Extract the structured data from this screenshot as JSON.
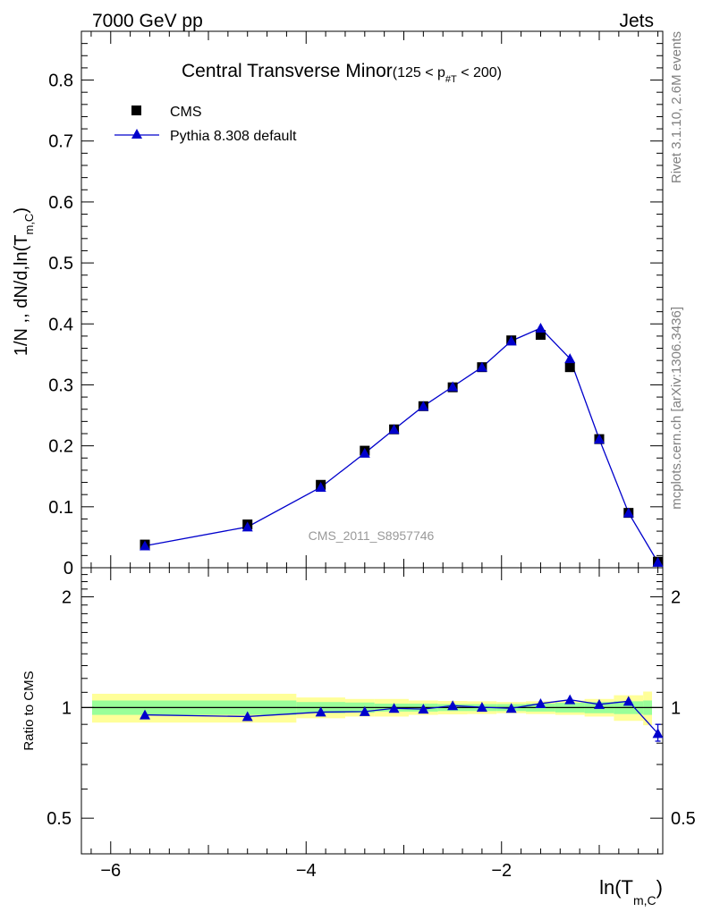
{
  "header": {
    "left": "7000 GeV pp",
    "right": "Jets"
  },
  "side_labels": {
    "rivet": "Rivet 3.1.10,  2.6M events",
    "mcplots": "mcplots.cern.ch [arXiv:1306.3436]"
  },
  "colors": {
    "data": "#000000",
    "mc": "#0000cc",
    "band_inner": "#99ff99",
    "band_outer": "#ffff99",
    "axis": "#000000",
    "watermark": "#999999"
  },
  "chart_data": [
    {
      "type": "scatter",
      "panel": "main",
      "title_main": "Central Transverse Minor",
      "title_sub": "(125 < p",
      "title_sub_index": "#T",
      "title_sub_tail": "  < 200)",
      "ylabel": "1/N ,, dN/d,ln(T",
      "ylabel_sub": "m,C",
      "ylabel_tail": ")",
      "watermark": "CMS_2011_S8957746",
      "xlim": [
        -6.3,
        -0.35
      ],
      "ylim": [
        0,
        0.88
      ],
      "yticks": [
        0,
        0.1,
        0.2,
        0.3,
        0.4,
        0.5,
        0.6,
        0.7,
        0.8
      ],
      "ytick_labels": [
        "0",
        "0.1",
        "0.2",
        "0.3",
        "0.4",
        "0.5",
        "0.6",
        "0.7",
        "0.8"
      ],
      "x": [
        -5.65,
        -4.6,
        -3.85,
        -3.4,
        -3.1,
        -2.8,
        -2.5,
        -2.2,
        -1.9,
        -1.6,
        -1.3,
        -1.0,
        -0.7,
        -0.4
      ],
      "series": [
        {
          "name": "CMS",
          "marker": "square",
          "values": [
            0.038,
            0.071,
            0.136,
            0.192,
            0.227,
            0.265,
            0.296,
            0.329,
            0.373,
            0.382,
            0.329,
            0.211,
            0.09,
            0.01
          ]
        },
        {
          "name": "Pythia 8.308 default",
          "marker": "triangle",
          "line": true,
          "values": [
            0.036,
            0.067,
            0.132,
            0.188,
            0.227,
            0.265,
            0.297,
            0.329,
            0.372,
            0.393,
            0.343,
            0.211,
            0.09,
            0.009
          ]
        }
      ]
    },
    {
      "type": "scatter",
      "panel": "ratio",
      "ylabel": "Ratio to CMS",
      "xlabel": "ln(T",
      "xlabel_sub": "m,C",
      "xlabel_tail": ")",
      "xticks": [
        -6,
        -4,
        -2
      ],
      "xtick_labels": [
        "−6",
        "−4",
        "−2"
      ],
      "yscale": "log",
      "ylim": [
        0.4,
        2.4
      ],
      "yticks": [
        0.5,
        1,
        2
      ],
      "ytick_labels": [
        "0.5",
        "1",
        "2"
      ],
      "x": [
        -5.65,
        -4.6,
        -3.85,
        -3.4,
        -3.1,
        -2.8,
        -2.5,
        -2.2,
        -1.9,
        -1.6,
        -1.3,
        -1.0,
        -0.7,
        -0.4
      ],
      "series": [
        {
          "name": "Pythia 8.308 default",
          "marker": "triangle",
          "values": [
            0.955,
            0.945,
            0.972,
            0.975,
            0.995,
            0.99,
            1.012,
            1.002,
            0.995,
            1.025,
            1.05,
            1.02,
            1.04,
            0.85
          ],
          "yerr_last": [
            0.81,
            0.9
          ]
        }
      ],
      "bands": {
        "edges": [
          -6.3,
          -4.1,
          -3.6,
          -3.3,
          -2.95,
          -2.65,
          -2.35,
          -2.05,
          -1.75,
          -1.45,
          -1.15,
          -0.85,
          -0.55,
          -0.25
        ],
        "inner_low": [
          0.955,
          0.965,
          0.968,
          0.975,
          0.975,
          0.978,
          0.978,
          0.978,
          0.975,
          0.97,
          0.965,
          0.96,
          0.955
        ],
        "inner_high": [
          1.045,
          1.035,
          1.032,
          1.025,
          1.025,
          1.022,
          1.022,
          1.022,
          1.025,
          1.03,
          1.035,
          1.04,
          1.045
        ],
        "outer_low": [
          0.91,
          0.935,
          0.945,
          0.945,
          0.955,
          0.958,
          0.96,
          0.965,
          0.96,
          0.955,
          0.945,
          0.92,
          0.895
        ],
        "outer_high": [
          1.09,
          1.065,
          1.055,
          1.055,
          1.045,
          1.042,
          1.04,
          1.035,
          1.04,
          1.045,
          1.055,
          1.08,
          1.105
        ]
      }
    }
  ]
}
